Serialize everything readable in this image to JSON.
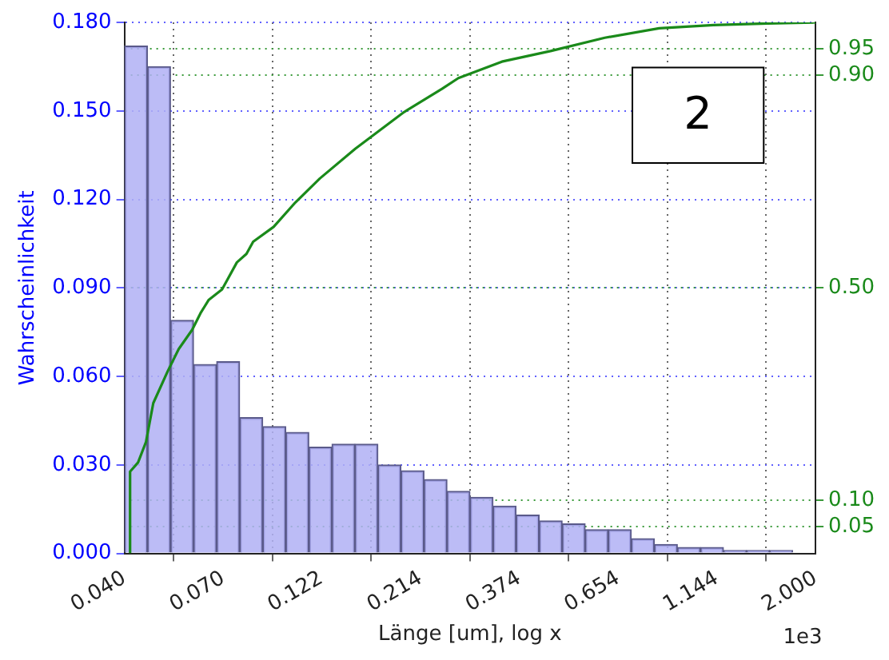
{
  "chart_data": {
    "type": "histogram",
    "xlabel": "Länge [um], log x",
    "ylabel": "Wahrscheinlichkeit",
    "bins": [
      0.04,
      0.04558,
      0.05193,
      0.05917,
      0.06741,
      0.07681,
      0.08752,
      0.09971,
      0.1136,
      0.1295,
      0.1475,
      0.1679,
      0.1914,
      0.218,
      0.2484,
      0.2828,
      0.3223,
      0.3672,
      0.4184,
      0.4767,
      0.5429,
      0.6186,
      0.7048,
      0.8031,
      0.915,
      1.0426,
      1.1879,
      1.3535,
      1.5421,
      1.7571,
      2.0
    ],
    "values": [
      0.172,
      0.165,
      0.079,
      0.064,
      0.065,
      0.046,
      0.043,
      0.041,
      0.036,
      0.037,
      0.037,
      0.03,
      0.028,
      0.025,
      0.021,
      0.019,
      0.016,
      0.013,
      0.011,
      0.01,
      0.008,
      0.008,
      0.005,
      0.003,
      0.002,
      0.002,
      0.001,
      0.001,
      0.001,
      0
    ],
    "color": "#b0b0f5",
    "series": [
      {
        "type": "line",
        "axis": "y2",
        "color": "#1a8a1a",
        "x": [
          0.0413,
          0.0413,
          0.0432,
          0.0452,
          0.0471,
          0.0511,
          0.0544,
          0.0587,
          0.0615,
          0.0644,
          0.0695,
          0.0717,
          0.0756,
          0.0798,
          0.0829,
          0.0931,
          0.1053,
          0.1209,
          0.1477,
          0.1947,
          0.2415,
          0.2648,
          0.3387,
          0.4463,
          0.6066,
          0.8254,
          1.122,
          1.526,
          2.0
        ],
        "values": [
          0,
          0.154,
          0.171,
          0.21,
          0.283,
          0.343,
          0.385,
          0.421,
          0.452,
          0.477,
          0.497,
          0.516,
          0.548,
          0.564,
          0.587,
          0.615,
          0.661,
          0.706,
          0.762,
          0.831,
          0.875,
          0.895,
          0.926,
          0.946,
          0.971,
          0.989,
          0.995,
          0.998,
          1.0
        ]
      }
    ],
    "log": "x",
    "xlim": [
      0.04,
      2.0
    ],
    "xticks": [
      {
        "value": 0.04,
        "label": "0.040"
      },
      {
        "value": 0.07,
        "label": "0.070"
      },
      {
        "value": 0.122,
        "label": "0.122"
      },
      {
        "value": 0.214,
        "label": "0.214"
      },
      {
        "value": 0.374,
        "label": "0.374"
      },
      {
        "value": 0.654,
        "label": "0.654"
      },
      {
        "value": 1.144,
        "label": "1.144"
      },
      {
        "value": 2.0,
        "label": "2.000"
      }
    ],
    "ylim": [
      0,
      0.18
    ],
    "yticks": [
      {
        "value": 0,
        "label": "0.000"
      },
      {
        "value": 0.03,
        "label": "0.030"
      },
      {
        "value": 0.06,
        "label": "0.060"
      },
      {
        "value": 0.09,
        "label": "0.090"
      },
      {
        "value": 0.12,
        "label": "0.120"
      },
      {
        "value": 0.15,
        "label": "0.150"
      },
      {
        "value": 0.18,
        "label": "0.180"
      }
    ],
    "y2lim": [
      0,
      1
    ],
    "y2ticks": [
      {
        "value": 0.05,
        "label": "0.05"
      },
      {
        "value": 0.1,
        "label": "0.10"
      },
      {
        "value": 0.5,
        "label": "0.50"
      },
      {
        "value": 0.9,
        "label": "0.90"
      },
      {
        "value": 0.95,
        "label": "0.95"
      }
    ],
    "grid": true,
    "legend": false,
    "annotations": [
      "2",
      "1e3"
    ]
  }
}
